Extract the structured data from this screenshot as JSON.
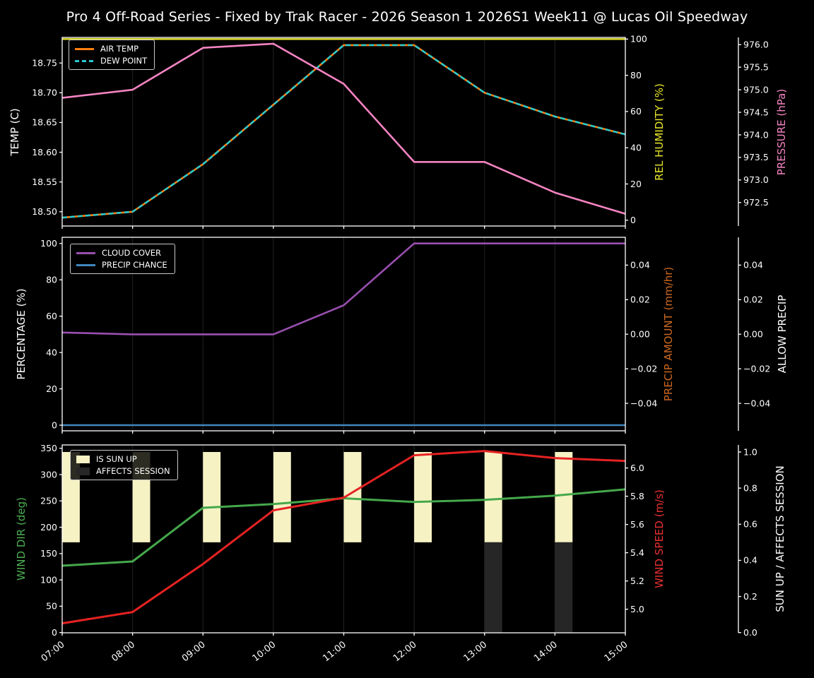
{
  "title": "Pro 4 Off-Road Series - Fixed by Trak Racer - 2026 Season 1 2026S1 Week11 @ Lucas Oil Speedway",
  "x_axis": {
    "hours": [
      7,
      8,
      9,
      10,
      11,
      12,
      13,
      14,
      15
    ],
    "tick_labels": [
      "07:00",
      "08:00",
      "09:00",
      "10:00",
      "11:00",
      "12:00",
      "13:00",
      "14:00",
      "15:00"
    ]
  },
  "chart_data": [
    {
      "id": "temperature",
      "type": "line",
      "axes": {
        "left": {
          "label": "TEMP (C)",
          "label_color": "#ffffff",
          "range": [
            18.476,
            18.793
          ],
          "tick_values": [
            18.5,
            18.55,
            18.6,
            18.65,
            18.7,
            18.75
          ],
          "tick_labels": [
            "18.50",
            "18.55",
            "18.60",
            "18.65",
            "18.70",
            "18.75"
          ]
        },
        "right": [
          {
            "label": "REL HUMIDITY (%)",
            "label_color": "#e8e62b",
            "range": [
              -3.2,
              100.9
            ],
            "tick_values": [
              0,
              20,
              40,
              60,
              80,
              100
            ],
            "tick_labels": [
              "0",
              "20",
              "40",
              "60",
              "80",
              "100"
            ]
          },
          {
            "label": "PRESSURE (hPa)",
            "label_color": "#f584c2",
            "range": [
              971.98,
              976.16
            ],
            "tick_values": [
              972.5,
              973.0,
              973.5,
              974.0,
              974.5,
              975.0,
              975.5,
              976.0
            ],
            "tick_labels": [
              "972.5",
              "973.0",
              "973.5",
              "974.0",
              "974.5",
              "975.0",
              "975.5",
              "976.0"
            ]
          }
        ]
      },
      "series": [
        {
          "name": "REL HUMIDITY",
          "axis": "right0",
          "color": "#e8e62b",
          "dash": false,
          "width": 2.4,
          "values": [
            100,
            100,
            100,
            100,
            100,
            100,
            100,
            100,
            100
          ]
        },
        {
          "name": "AIR TEMP",
          "axis": "left",
          "color": "#ff7f0e",
          "dash": false,
          "width": 2.6,
          "values": [
            18.49,
            18.5,
            18.58,
            18.68,
            18.78,
            18.78,
            18.7,
            18.66,
            18.63
          ]
        },
        {
          "name": "DEW POINT",
          "axis": "left",
          "color": "#2ac8ca",
          "dash": true,
          "width": 2.6,
          "values": [
            18.49,
            18.5,
            18.58,
            18.68,
            18.78,
            18.78,
            18.7,
            18.66,
            18.63
          ]
        },
        {
          "name": "PRESSURE",
          "axis": "right1",
          "color": "#f584c2",
          "dash": false,
          "width": 2.6,
          "values": [
            974.82,
            975.0,
            975.93,
            976.02,
            975.13,
            973.4,
            973.4,
            972.72,
            972.25
          ]
        }
      ],
      "legend": [
        {
          "label": "AIR TEMP",
          "color": "#ff7f0e",
          "swatch": "line"
        },
        {
          "label": "DEW POINT",
          "color": "#2ac8ca",
          "swatch": "dash"
        }
      ]
    },
    {
      "id": "precipitation",
      "type": "line",
      "axes": {
        "left": {
          "label": "PERCENTAGE (%)",
          "label_color": "#ffffff",
          "range": [
            -3.1,
            103.4
          ],
          "tick_values": [
            0,
            20,
            40,
            60,
            80,
            100
          ],
          "tick_labels": [
            "0",
            "20",
            "40",
            "60",
            "80",
            "100"
          ]
        },
        "right": [
          {
            "label": "PRECIP AMOUNT (mm/hr)",
            "label_color": "#cd671f",
            "range": [
              -0.0559,
              0.0561
            ],
            "tick_values": [
              -0.04,
              -0.02,
              0.0,
              0.02,
              0.04
            ],
            "tick_labels": [
              "−0.04",
              "−0.02",
              "0.00",
              "0.02",
              "0.04"
            ]
          },
          {
            "label": "ALLOW PRECIP",
            "label_color": "#ffffff",
            "range": [
              -0.0559,
              0.0561
            ],
            "tick_values": [
              -0.04,
              -0.02,
              0.0,
              0.02,
              0.04
            ],
            "tick_labels": [
              "−0.04",
              "−0.02",
              "0.00",
              "0.02",
              "0.04"
            ]
          }
        ]
      },
      "series": [
        {
          "name": "CLOUD COVER",
          "axis": "left",
          "color": "#9a4fb0",
          "dash": false,
          "width": 2.6,
          "values": [
            51,
            50,
            50,
            50,
            66,
            100,
            100,
            100,
            100
          ]
        },
        {
          "name": "PRECIP CHANCE",
          "axis": "left",
          "color": "#4186bd",
          "dash": false,
          "width": 2.6,
          "values": [
            0,
            0,
            0,
            0,
            0,
            0,
            0,
            0,
            0
          ]
        }
      ],
      "legend": [
        {
          "label": "CLOUD COVER",
          "color": "#9a4fb0",
          "swatch": "line"
        },
        {
          "label": "PRECIP CHANCE",
          "color": "#4186bd",
          "swatch": "line"
        }
      ]
    },
    {
      "id": "wind",
      "type": "line+bar",
      "axes": {
        "left": {
          "label": "WIND DIR (deg)",
          "label_color": "#4cae52",
          "range": [
            -0.4,
            356.3
          ],
          "tick_values": [
            0,
            50,
            100,
            150,
            200,
            250,
            300,
            350
          ],
          "tick_labels": [
            "0",
            "50",
            "100",
            "150",
            "200",
            "250",
            "300",
            "350"
          ]
        },
        "right": [
          {
            "label": "WIND SPEED (m/s)",
            "label_color": "#e93030",
            "range": [
              4.833,
              6.163
            ],
            "tick_values": [
              5.0,
              5.2,
              5.4,
              5.6,
              5.8,
              6.0
            ],
            "tick_labels": [
              "5.0",
              "5.2",
              "5.4",
              "5.6",
              "5.8",
              "6.0"
            ]
          },
          {
            "label": "SUN UP / AFFECTS SESSION",
            "label_color": "#ffffff",
            "range": [
              -0.001,
              1.039
            ],
            "tick_values": [
              0.0,
              0.2,
              0.4,
              0.6,
              0.8,
              1.0
            ],
            "tick_labels": [
              "0.0",
              "0.2",
              "0.4",
              "0.6",
              "0.8",
              "1.0"
            ]
          }
        ]
      },
      "bars": {
        "axis": "right1",
        "hours": [
          7,
          8,
          9,
          10,
          11,
          12,
          13,
          14
        ],
        "width_hours": 0.25,
        "sun_up": [
          1,
          1,
          1,
          1,
          1,
          1,
          1,
          1
        ],
        "affects_session": [
          0,
          0,
          0,
          0,
          0,
          0,
          1,
          1
        ],
        "sun_up_span": [
          0.5,
          1.0
        ],
        "affects_span": [
          0.0,
          0.5
        ],
        "sun_up_color": "#f6f2c4",
        "affects_color": "#262626"
      },
      "series": [
        {
          "name": "WIND DIR",
          "axis": "left",
          "color": "#45a84b",
          "dash": false,
          "width": 3,
          "values": [
            127,
            135,
            237,
            244,
            255,
            248,
            252,
            260,
            272
          ]
        },
        {
          "name": "WIND SPEED",
          "axis": "right0",
          "color": "#e62222",
          "dash": false,
          "width": 3,
          "values": [
            4.9,
            4.98,
            5.32,
            5.7,
            5.79,
            6.09,
            6.12,
            6.07,
            6.05
          ]
        }
      ],
      "legend": [
        {
          "label": "IS SUN UP",
          "color": "#f6f2c4",
          "swatch": "patch"
        },
        {
          "label": "AFFECTS SESSION",
          "color": "#262626",
          "swatch": "patch"
        }
      ]
    }
  ]
}
